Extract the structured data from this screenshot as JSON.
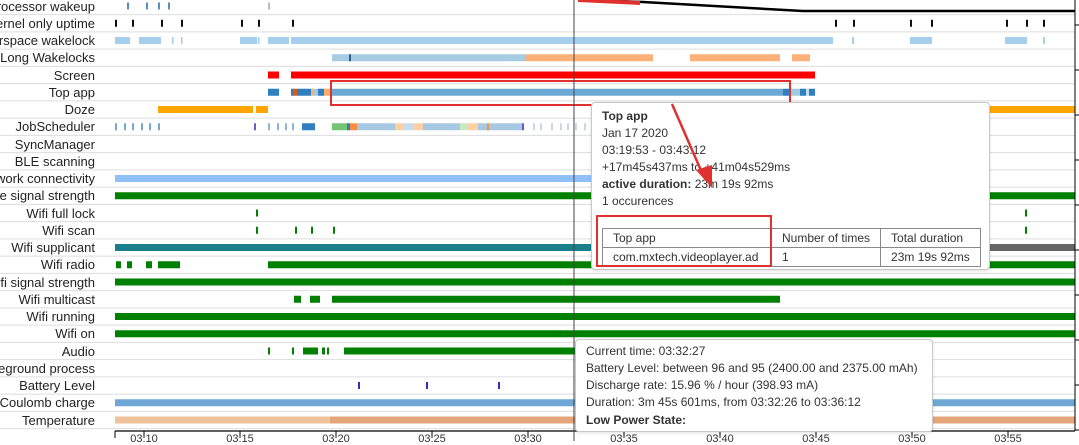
{
  "rows": [
    {
      "label": "Processor wakeup"
    },
    {
      "label": "Kernel only uptime"
    },
    {
      "label": "Userspace wakelock"
    },
    {
      "label": "Long Wakelocks"
    },
    {
      "label": "Screen"
    },
    {
      "label": "Top app"
    },
    {
      "label": "Doze"
    },
    {
      "label": "JobScheduler"
    },
    {
      "label": "SyncManager"
    },
    {
      "label": "BLE scanning"
    },
    {
      "label": "Network connectivity"
    },
    {
      "label": "Mobile signal strength"
    },
    {
      "label": "Wifi full lock"
    },
    {
      "label": "Wifi scan"
    },
    {
      "label": "Wifi supplicant"
    },
    {
      "label": "Wifi radio"
    },
    {
      "label": "Wifi signal strength"
    },
    {
      "label": "Wifi multicast"
    },
    {
      "label": "Wifi running"
    },
    {
      "label": "Wifi on"
    },
    {
      "label": "Audio"
    },
    {
      "label": "Foreground process"
    },
    {
      "label": "Battery Level"
    },
    {
      "label": "Coulomb charge"
    },
    {
      "label": "Temperature"
    }
  ],
  "x_axis_ticks": [
    "03:10",
    "03:15",
    "03:20",
    "03:25",
    "03:30",
    "03:35",
    "03:40",
    "03:45",
    "03:50",
    "03:55"
  ],
  "colors": {
    "screen": "#ff0000",
    "top_app": "#6ba9d4",
    "doze": "#ffa500",
    "green": "#008000",
    "wifi_supplicant": "#1a7f8a",
    "network": "#8fc0f7",
    "wakelock": "#a6cfee",
    "long_wakelock_orange": "#fdb077",
    "battery_tick": "#3030c0",
    "coulomb": "#6fa8d6",
    "temperature": "#e5a57a",
    "annotation": "#e03030"
  },
  "top_app_tooltip": {
    "title": "Top app",
    "date": "Jan 17 2020",
    "time_range": "03:19:53 - 03:43:12",
    "offset_range": "+17m45s437ms to +41m04s529ms",
    "active_duration_label": "active duration:",
    "active_duration_value": "23m 19s 92ms",
    "occurrences": "1 occurences",
    "table": {
      "headers": [
        "Top app",
        "Number of times",
        "Total duration"
      ],
      "rows": [
        [
          "com.mxtech.videoplayer.ad",
          "1",
          "23m 19s 92ms"
        ]
      ]
    }
  },
  "battery_tooltip": {
    "current_time": "Current time: 03:32:27",
    "battery_level": "Battery Level: between 96 and 95 (2400.00 and 2375.00 mAh)",
    "discharge_rate": "Discharge rate: 15.96 % / hour (398.93 mA)",
    "duration": "Duration: 3m 45s 601ms, from 03:32:26 to 03:36:12",
    "low_power_state": "Low Power State:"
  }
}
